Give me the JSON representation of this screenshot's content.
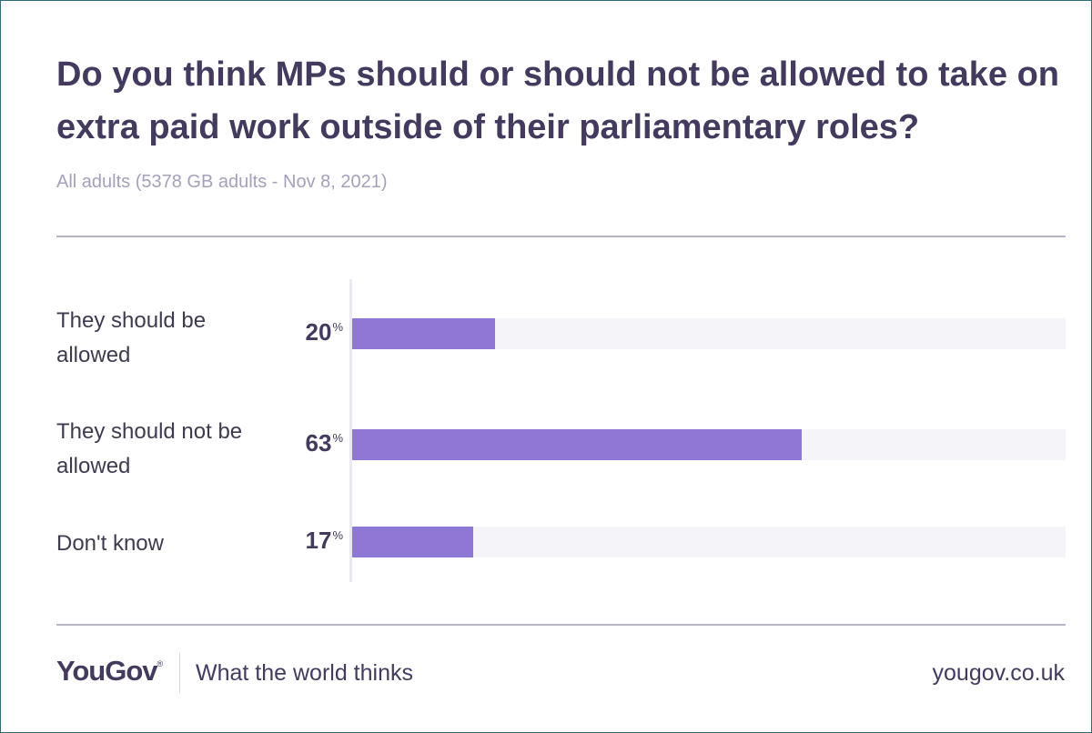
{
  "chart_data": {
    "type": "bar",
    "orientation": "horizontal",
    "title": "Do you think MPs should or should not be allowed to take on extra paid work outside of their parliamentary roles?",
    "subtitle": "All adults (5378 GB adults - Nov 8, 2021)",
    "categories": [
      "They should be allowed",
      "They should not be allowed",
      "Don't know"
    ],
    "values": [
      20,
      63,
      17
    ],
    "unit": "%",
    "xlim": [
      0,
      100
    ],
    "grid": false,
    "colors": {
      "bar": "#8f77d6",
      "track": "#f5f4f9",
      "text": "#433a5e"
    }
  },
  "footer": {
    "logo_text": "YouGov",
    "logo_mark": "®",
    "tagline": "What the world thinks",
    "site": "yougov.co.uk"
  }
}
